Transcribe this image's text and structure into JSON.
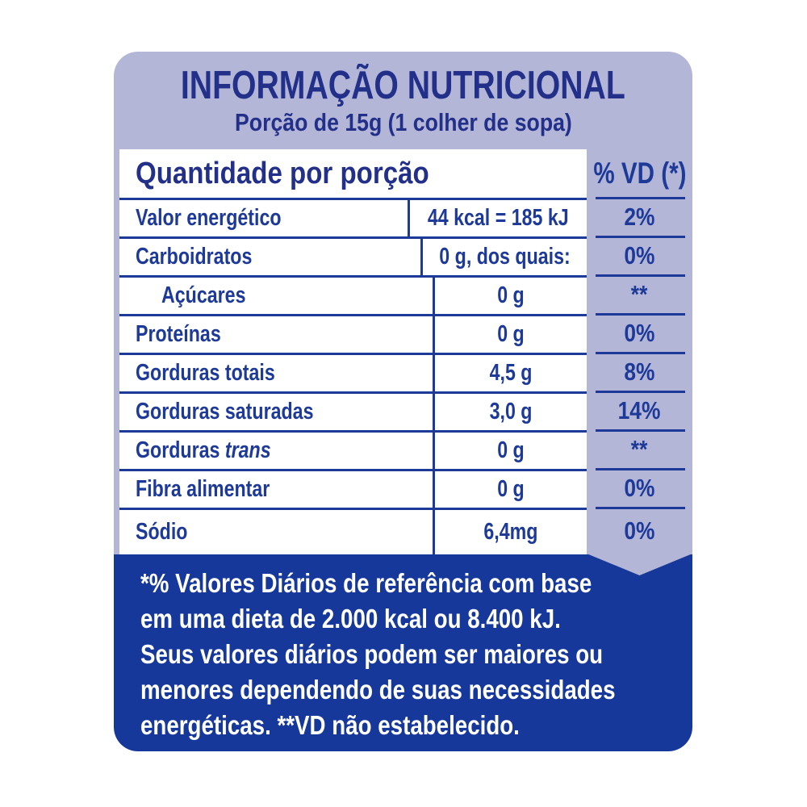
{
  "header": {
    "title": "INFORMAÇÃO NUTRICIONAL",
    "subtitle": "Porção de 15g (1 colher de sopa)"
  },
  "table": {
    "quantity_header": "Quantidade por porção",
    "vd_header": "% VD (*)",
    "rows": [
      {
        "name": "Valor energético",
        "amount": "44 kcal = 185 kJ",
        "vd": "2%"
      },
      {
        "name": "Carboidratos",
        "amount": "0 g, dos quais:",
        "vd": "0%"
      },
      {
        "name": "Açúcares",
        "amount": "0 g",
        "vd": "**",
        "indent": true
      },
      {
        "name": "Proteínas",
        "amount": "0 g",
        "vd": "0%"
      },
      {
        "name": "Gorduras totais",
        "amount": "4,5 g",
        "vd": "8%"
      },
      {
        "name": "Gorduras saturadas",
        "amount": "3,0 g",
        "vd": "14%"
      },
      {
        "name": "Gorduras",
        "name_italic": "trans",
        "amount": "0 g",
        "vd": "**"
      },
      {
        "name": "Fibra alimentar",
        "amount": "0 g",
        "vd": "0%"
      },
      {
        "name": "Sódio",
        "amount": "6,4mg",
        "vd": "0%"
      }
    ]
  },
  "footer": {
    "lines": [
      "*% Valores Diários de referência com base",
      "em uma dieta de 2.000 kcal ou 8.400 kJ.",
      "Seus valores diários podem ser maiores ou",
      "menores dependendo de suas necessidades",
      "energéticas. **VD não estabelecido."
    ]
  },
  "colors": {
    "lavender": "#b4b6d8",
    "dark_blue": "#17389b",
    "text_blue": "#1e3a99",
    "title_navy": "#22308a"
  }
}
